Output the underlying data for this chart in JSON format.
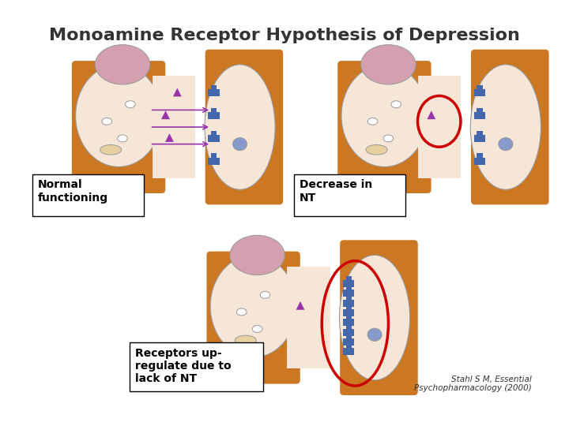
{
  "title": "Monoamine Receptor Hypothesis of Depression",
  "title_fontsize": 16,
  "title_color": "#333333",
  "bg_color": "#ffffff",
  "label1": "Normal\nfunctioning",
  "label2": "Decrease in\nNT",
  "label3": "Receptors up-\nregulate due to\nlack of NT",
  "citation": "Stahl S M, Essential\nPsychopharmacology (2000)",
  "orange_color": "#CC7722",
  "neuron_body_color": "#F5E6D8",
  "neuron_outline": "#999999",
  "receptor_color": "#4466AA",
  "arrow_color": "#9933AA",
  "red_circle_color": "#CC0000",
  "label_box_color": "#FFFFFF",
  "label_box_edge": "#000000"
}
